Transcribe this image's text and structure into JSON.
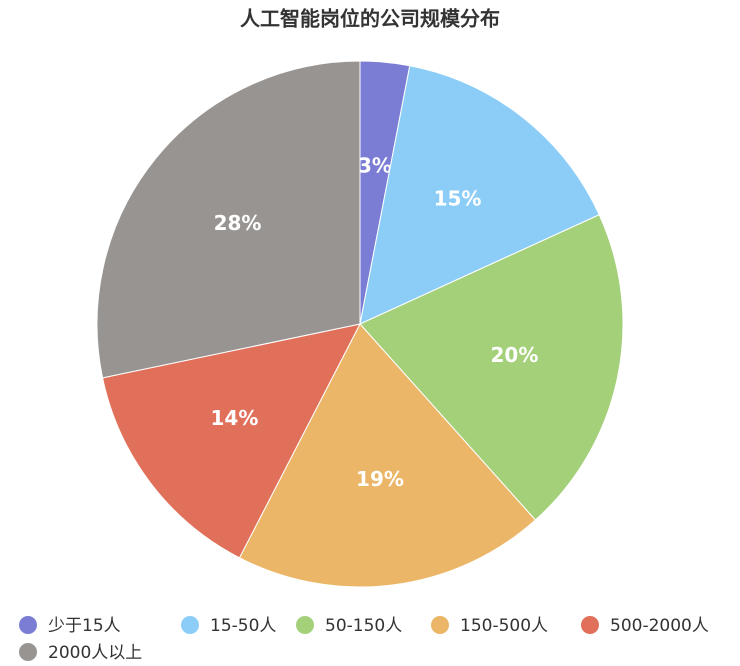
{
  "chart_data": {
    "type": "pie",
    "title": "人工智能岗位的公司规模分布",
    "categories": [
      "少于15人",
      "15-50人",
      "50-150人",
      "150-500人",
      "500-2000人",
      "2000人以上"
    ],
    "values": [
      3,
      15,
      20,
      19,
      14,
      28
    ],
    "value_labels": [
      "3%",
      "15%",
      "20%",
      "19%",
      "14%",
      "28%"
    ],
    "colors": [
      "#7a7dd3",
      "#8ccdf8",
      "#a4d07a",
      "#ebb667",
      "#e0705a",
      "#989491"
    ]
  }
}
